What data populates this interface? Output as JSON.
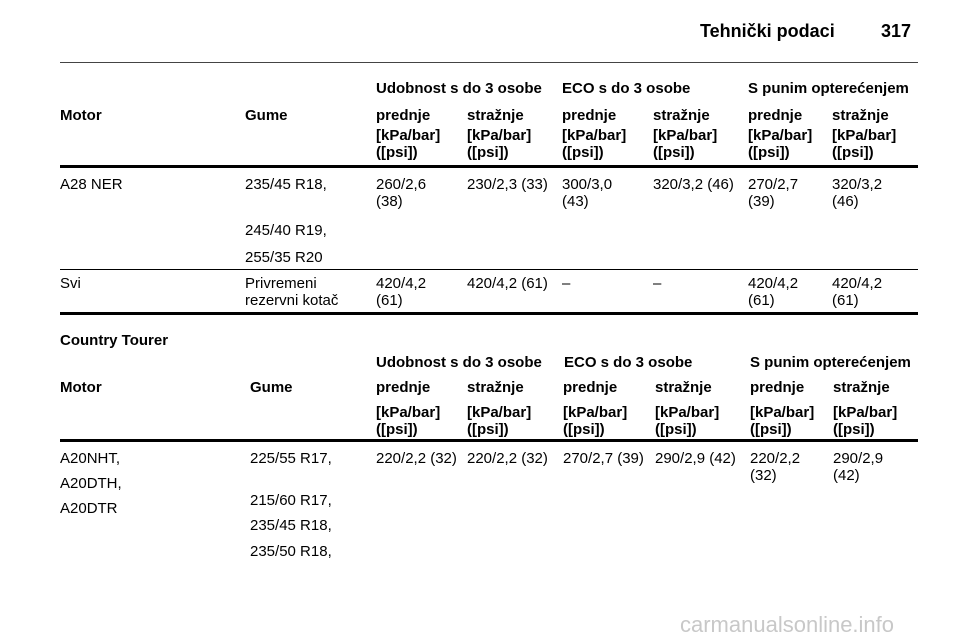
{
  "header": {
    "title": "Tehnički podaci",
    "page": "317"
  },
  "tables": [
    {
      "group_headers": [
        "Udobnost s do 3 osobe",
        "ECO s do 3 osobe",
        "S punim opterećenjem"
      ],
      "column_headers": [
        "Motor",
        "Gume",
        "prednje",
        "stražnje",
        "prednje",
        "stražnje",
        "prednje",
        "stražnje"
      ],
      "units": [
        "[kPa/bar]\n([psi])",
        "[kPa/bar]\n([psi])",
        "[kPa/bar]\n([psi])",
        "[kPa/bar]\n([psi])",
        "[kPa/bar]\n([psi])",
        "[kPa/bar]\n([psi])"
      ],
      "rows": [
        {
          "motor": [
            "A28 NER"
          ],
          "tyres": [
            "235/45 R18,",
            "245/40 R19,",
            "255/35 R20"
          ],
          "values": [
            "260/2,6\n(38)",
            "230/2,3 (33)",
            "300/3,0\n(43)",
            "320/3,2 (46)",
            "270/2,7\n(39)",
            "320/3,2\n(46)"
          ]
        },
        {
          "motor": [
            "Svi"
          ],
          "tyres": [
            "Privremeni\nrezervni kotač"
          ],
          "values": [
            "420/4,2\n(61)",
            "420/4,2 (61)",
            "–",
            "–",
            "420/4,2\n(61)",
            "420/4,2\n(61)"
          ]
        }
      ]
    },
    {
      "section_title": "Country Tourer",
      "group_headers": [
        "Udobnost s do 3 osobe",
        "ECO s do 3 osobe",
        "S punim opterećenjem"
      ],
      "column_headers": [
        "Motor",
        "Gume",
        "prednje",
        "stražnje",
        "prednje",
        "stražnje",
        "prednje",
        "stražnje"
      ],
      "units": [
        "[kPa/bar]\n([psi])",
        "[kPa/bar]\n([psi])",
        "[kPa/bar]\n([psi])",
        "[kPa/bar]\n([psi])",
        "[kPa/bar]\n([psi])",
        "[kPa/bar]\n([psi])"
      ],
      "rows": [
        {
          "motor": [
            "A20NHT,",
            "A20DTH,",
            "A20DTR"
          ],
          "tyres": [
            "225/55 R17,",
            "215/60 R17,",
            "235/45 R18,",
            "235/50 R18,"
          ],
          "values": [
            "220/2,2 (32)",
            "220/2,2 (32)",
            "270/2,7 (39)",
            "290/2,9 (42)",
            "220/2,2\n(32)",
            "290/2,9\n(42)"
          ]
        }
      ]
    }
  ],
  "watermark": "carmanualsonline.info"
}
